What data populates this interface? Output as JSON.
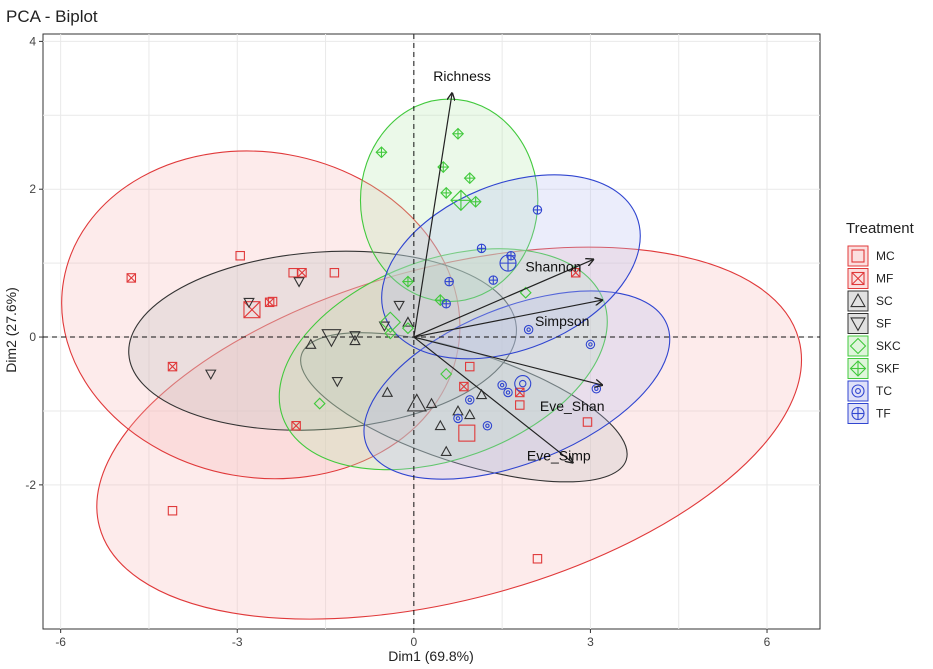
{
  "chart_data": {
    "type": "scatter",
    "title": "PCA - Biplot",
    "xlabel": "Dim1 (69.8%)",
    "ylabel": "Dim2 (27.6%)",
    "xlim": [
      -6.3,
      6.9
    ],
    "ylim": [
      -3.95,
      4.1
    ],
    "xticks": [
      -6,
      -3,
      0,
      3,
      6
    ],
    "xtick_labels": [
      "-6",
      "-3",
      "0",
      "3",
      "6"
    ],
    "yticks": [
      -2,
      0,
      2,
      4
    ],
    "ytick_labels": [
      "-2",
      "0",
      "2",
      "4"
    ],
    "grid": true,
    "legend": {
      "title": "Treatment",
      "position": "right"
    },
    "groups": [
      {
        "name": "MC",
        "color": "#e0393a",
        "fill": "#f7b8b8",
        "shape": "square",
        "ellipse": {
          "cx": 0.6,
          "cy": -1.3,
          "rx": 6.15,
          "ry": 2.25,
          "angle": 15
        },
        "centroid": [
          0.9,
          -1.3
        ],
        "points": [
          [
            -4.1,
            -2.35
          ],
          [
            -2.95,
            1.1
          ],
          [
            -2.4,
            0.48
          ],
          [
            -1.35,
            0.87
          ],
          [
            0.95,
            -0.4
          ],
          [
            2.1,
            -3.0
          ],
          [
            2.95,
            -1.15
          ],
          [
            1.8,
            -0.92
          ],
          [
            -2.05,
            0.87
          ]
        ]
      },
      {
        "name": "MF",
        "color": "#e0393a",
        "fill": "#f7b8b8",
        "shape": "square-x",
        "ellipse": {
          "cx": -2.6,
          "cy": 0.3,
          "rx": 3.4,
          "ry": 2.2,
          "angle": -10
        },
        "centroid": [
          -2.75,
          0.37
        ],
        "points": [
          [
            -4.8,
            0.8
          ],
          [
            -4.1,
            -0.4
          ],
          [
            -1.9,
            0.87
          ],
          [
            -2.45,
            0.47
          ],
          [
            -2.0,
            -1.2
          ],
          [
            0.85,
            -0.67
          ],
          [
            1.8,
            -0.75
          ],
          [
            2.75,
            0.87
          ]
        ]
      },
      {
        "name": "SC",
        "color": "#333333",
        "fill": "#bdbdbd",
        "shape": "triangle",
        "ellipse": {
          "cx": 0.85,
          "cy": -0.95,
          "rx": 2.9,
          "ry": 0.75,
          "angle": -18
        },
        "centroid": [
          0.05,
          -0.9
        ],
        "points": [
          [
            -1.75,
            -0.1
          ],
          [
            -1.0,
            -0.05
          ],
          [
            -0.45,
            -0.75
          ],
          [
            0.3,
            -0.9
          ],
          [
            0.45,
            -1.2
          ],
          [
            0.75,
            -1.0
          ],
          [
            0.95,
            -1.05
          ],
          [
            0.55,
            -1.55
          ],
          [
            -0.1,
            0.2
          ],
          [
            1.15,
            -0.78
          ]
        ]
      },
      {
        "name": "SF",
        "color": "#333333",
        "fill": "#bdbdbd",
        "shape": "triangle-down",
        "ellipse": {
          "cx": -1.55,
          "cy": -0.05,
          "rx": 3.3,
          "ry": 1.2,
          "angle": 4
        },
        "centroid": [
          -1.4,
          0.0
        ],
        "points": [
          [
            -3.45,
            -0.5
          ],
          [
            -2.8,
            0.47
          ],
          [
            -1.95,
            0.75
          ],
          [
            -1.3,
            -0.6
          ],
          [
            -0.25,
            0.43
          ],
          [
            -0.5,
            0.15
          ],
          [
            -1.0,
            0.02
          ]
        ]
      },
      {
        "name": "SKC",
        "color": "#41c93c",
        "fill": "#b8e8b0",
        "shape": "diamond",
        "ellipse": {
          "cx": 0.5,
          "cy": -0.3,
          "rx": 2.9,
          "ry": 1.35,
          "angle": 20
        },
        "centroid": [
          -0.4,
          0.2
        ],
        "points": [
          [
            -1.6,
            -0.9
          ],
          [
            -0.1,
            0.12
          ],
          [
            1.9,
            0.6
          ],
          [
            0.55,
            -0.5
          ],
          [
            -0.4,
            0.05
          ]
        ]
      },
      {
        "name": "SKF",
        "color": "#41c93c",
        "fill": "#b8e8b0",
        "shape": "diamond-plus",
        "ellipse": {
          "cx": 0.6,
          "cy": 1.85,
          "rx": 1.72,
          "ry": 1.2,
          "angle": 90
        },
        "centroid": [
          0.8,
          1.85
        ],
        "points": [
          [
            -0.55,
            2.5
          ],
          [
            0.5,
            2.3
          ],
          [
            0.75,
            2.75
          ],
          [
            0.95,
            2.15
          ],
          [
            1.05,
            1.83
          ],
          [
            -0.1,
            0.75
          ],
          [
            0.45,
            0.5
          ],
          [
            0.55,
            1.95
          ]
        ]
      },
      {
        "name": "TC",
        "color": "#3045d0",
        "fill": "#b8bdf0",
        "shape": "circle",
        "ellipse": {
          "cx": 1.75,
          "cy": -0.65,
          "rx": 2.75,
          "ry": 1.05,
          "angle": 22
        },
        "centroid": [
          1.85,
          -0.63
        ],
        "points": [
          [
            0.95,
            -0.85
          ],
          [
            1.25,
            -1.2
          ],
          [
            0.75,
            -1.1
          ],
          [
            1.5,
            -0.65
          ],
          [
            1.95,
            0.1
          ],
          [
            3.0,
            -0.1
          ],
          [
            3.1,
            -0.7
          ],
          [
            1.6,
            -0.75
          ]
        ]
      },
      {
        "name": "TF",
        "color": "#3045d0",
        "fill": "#b8bdf0",
        "shape": "circle-plus",
        "ellipse": {
          "cx": 1.65,
          "cy": 0.95,
          "rx": 2.3,
          "ry": 1.12,
          "angle": 22
        },
        "centroid": [
          1.6,
          1.0
        ],
        "points": [
          [
            2.1,
            1.72
          ],
          [
            1.15,
            1.2
          ],
          [
            1.65,
            1.1
          ],
          [
            1.35,
            0.77
          ],
          [
            0.55,
            0.45
          ],
          [
            0.6,
            0.75
          ]
        ]
      }
    ],
    "vectors": [
      {
        "label": "Richness",
        "x": 0.65,
        "y": 3.3
      },
      {
        "label": "Shannon",
        "x": 3.05,
        "y": 1.05
      },
      {
        "label": "Simpson",
        "x": 3.2,
        "y": 0.5
      },
      {
        "label": "Eve_Shan",
        "x": 3.2,
        "y": -0.65
      },
      {
        "label": "Eve_Simp",
        "x": 2.7,
        "y": -1.7
      }
    ]
  }
}
